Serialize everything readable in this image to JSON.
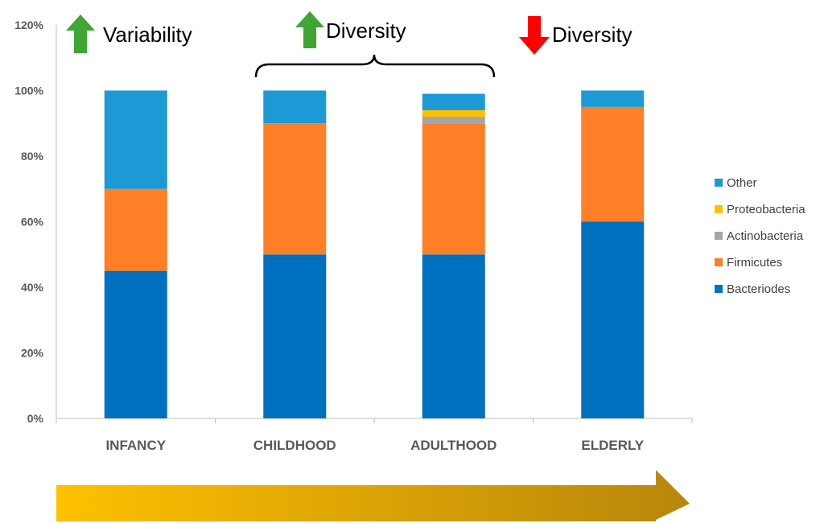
{
  "chart_data": {
    "type": "bar",
    "stacked": true,
    "categories": [
      "INFANCY",
      "CHILDHOOD",
      "ADULTHOOD",
      "ELDERLY"
    ],
    "series": [
      {
        "name": "Bacteriodes",
        "color": "#0070C0",
        "values": [
          45,
          50,
          50,
          60
        ]
      },
      {
        "name": "Firmicutes",
        "color": "#FF7F27",
        "values": [
          25,
          40,
          40,
          35
        ]
      },
      {
        "name": "Actinobacteria",
        "color": "#A5A5A5",
        "values": [
          0,
          0,
          2,
          0
        ]
      },
      {
        "name": "Proteobacteria",
        "color": "#FFC000",
        "values": [
          0,
          0,
          2,
          0
        ]
      },
      {
        "name": "Other",
        "color": "#1B9AD6",
        "values": [
          30,
          10,
          5,
          5
        ]
      }
    ],
    "ylim": [
      0,
      120
    ],
    "yticks": [
      "0%",
      "20%",
      "40%",
      "60%",
      "80%",
      "100%",
      "120%"
    ],
    "legend_position": "right",
    "grid": false
  },
  "annotations": [
    {
      "direction": "up",
      "color": "#3FA535",
      "label": "Variability"
    },
    {
      "direction": "up",
      "color": "#3FA535",
      "label": "Diversity"
    },
    {
      "direction": "down",
      "color": "#FF0000",
      "label": "Diversity"
    }
  ],
  "timeline_arrow": {
    "color_start": "#FFC000",
    "color_end": "#B8860B"
  }
}
